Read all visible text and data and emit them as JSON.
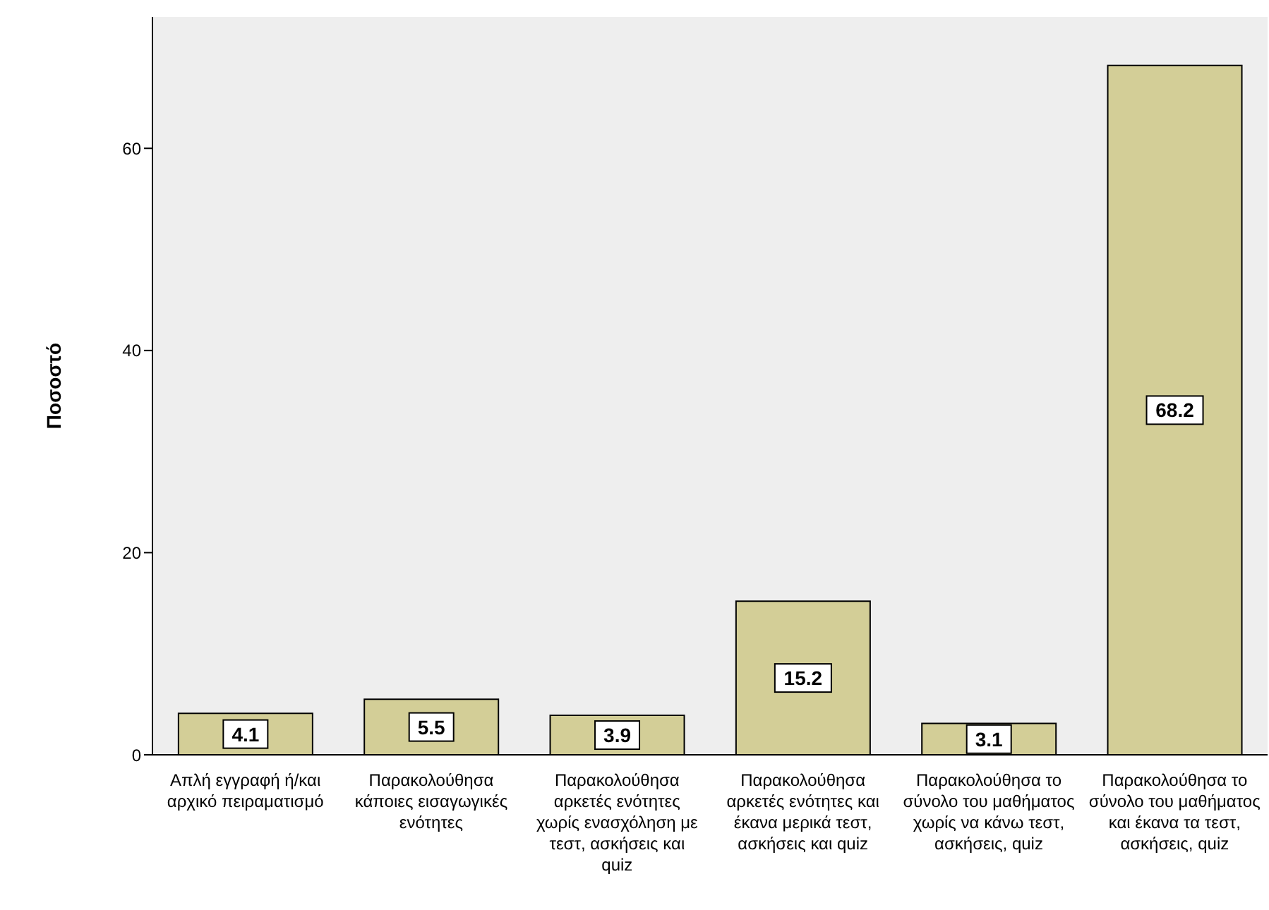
{
  "chart_data": {
    "type": "bar",
    "ylabel": "Ποσοστό",
    "categories": [
      "Απλή εγγραφή ή/και αρχικό πειραματισμό",
      "Παρακολούθησα κάποιες εισαγωγικές ενότητες",
      "Παρακολούθησα αρκετές ενότητες χωρίς ενασχόληση με τεστ, ασκήσεις και quiz",
      "Παρακολούθησα αρκετές ενότητες και έκανα μερικά τεστ, ασκήσεις και quiz",
      "Παρακολούθησα το σύνολο του μαθήματος χωρίς να κάνω τεστ, ασκήσεις, quiz",
      "Παρακολούθησα το σύνολο του μαθήματος και έκανα τα τεστ, ασκήσεις, quiz"
    ],
    "values": [
      4.1,
      5.5,
      3.9,
      15.2,
      3.1,
      68.2
    ],
    "color": "#d3ce97",
    "ylim": [
      0,
      73
    ],
    "yticks": [
      0,
      20,
      40,
      60
    ],
    "grid": false,
    "legend": false,
    "data_labels": true
  }
}
